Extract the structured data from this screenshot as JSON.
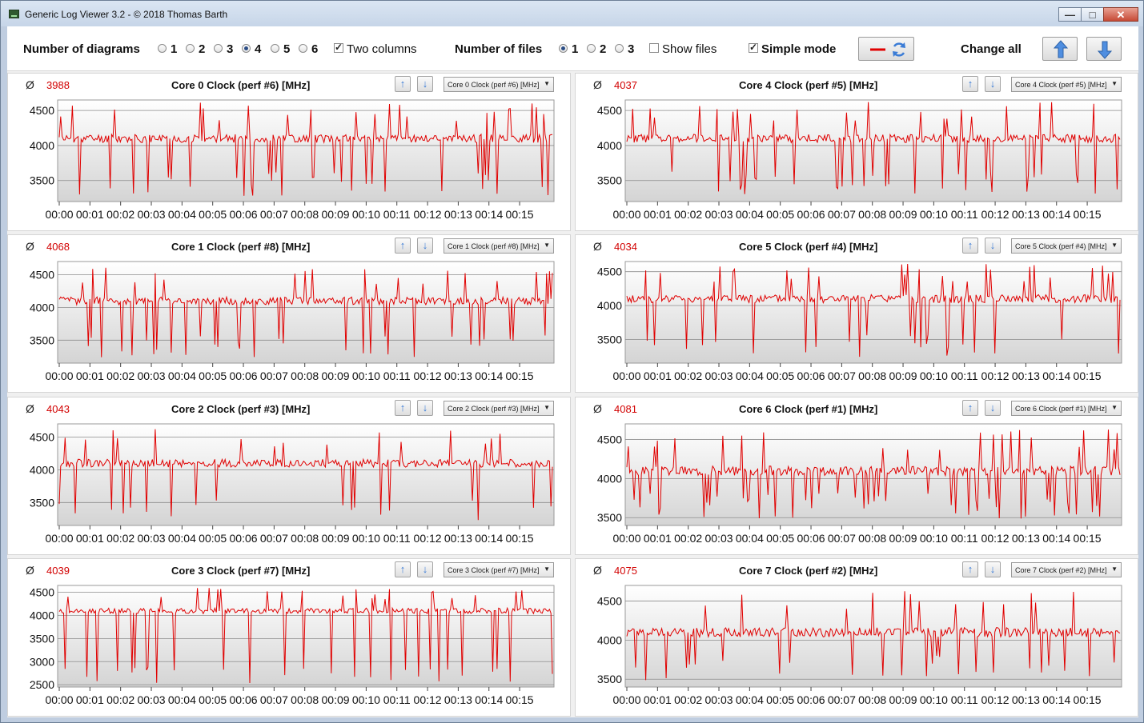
{
  "window": {
    "title": "Generic Log Viewer 3.2 - © 2018 Thomas Barth",
    "minimize_glyph": "—",
    "maximize_glyph": "□",
    "close_glyph": "✕"
  },
  "toolbar": {
    "num_diagrams_label": "Number of diagrams",
    "diagram_options": [
      "1",
      "2",
      "3",
      "4",
      "5",
      "6"
    ],
    "diagram_selected": "4",
    "two_columns_label": "Two columns",
    "two_columns_checked": true,
    "num_files_label": "Number of files",
    "file_options": [
      "1",
      "2",
      "3"
    ],
    "file_selected": "1",
    "show_files_label": "Show files",
    "show_files_checked": false,
    "simple_mode_label": "Simple mode",
    "simple_mode_checked": true,
    "change_all_label": "Change all"
  },
  "colors": {
    "series": "#e00000",
    "average": "#d20000",
    "accent_arrow": "#3b7cd6"
  },
  "x_ticks": [
    "00:00",
    "00:01",
    "00:02",
    "00:03",
    "00:04",
    "00:05",
    "00:06",
    "00:07",
    "00:08",
    "00:09",
    "00:10",
    "00:11",
    "00:12",
    "00:13",
    "00:14",
    "00:15"
  ],
  "panels": [
    {
      "id": "p0",
      "avg_symbol": "Ø",
      "average": "3988",
      "title": "Core 0 Clock (perf #6) [MHz]",
      "dropdown": "Core 0 Clock (perf #6) [MHz]",
      "yticks": [
        4500,
        4000,
        3500
      ],
      "ymin": 3200,
      "ymax": 4650,
      "seed": 11
    },
    {
      "id": "p4",
      "avg_symbol": "Ø",
      "average": "4037",
      "title": "Core 4 Clock (perf #5) [MHz]",
      "dropdown": "Core 4 Clock (perf #5) [MHz]",
      "yticks": [
        4500,
        4000,
        3500
      ],
      "ymin": 3200,
      "ymax": 4650,
      "seed": 23
    },
    {
      "id": "p1",
      "avg_symbol": "Ø",
      "average": "4068",
      "title": "Core 1 Clock (perf #8) [MHz]",
      "dropdown": "Core 1 Clock (perf #8) [MHz]",
      "yticks": [
        4500,
        4000,
        3500
      ],
      "ymin": 3150,
      "ymax": 4700,
      "seed": 37
    },
    {
      "id": "p5",
      "avg_symbol": "Ø",
      "average": "4034",
      "title": "Core 5 Clock (perf #4) [MHz]",
      "dropdown": "Core 5 Clock (perf #4) [MHz]",
      "yticks": [
        4500,
        4000,
        3500
      ],
      "ymin": 3150,
      "ymax": 4650,
      "seed": 41
    },
    {
      "id": "p2",
      "avg_symbol": "Ø",
      "average": "4043",
      "title": "Core 2 Clock (perf #3) [MHz]",
      "dropdown": "Core 2 Clock (perf #3) [MHz]",
      "yticks": [
        4500,
        4000,
        3500
      ],
      "ymin": 3150,
      "ymax": 4700,
      "seed": 53
    },
    {
      "id": "p6",
      "avg_symbol": "Ø",
      "average": "4081",
      "title": "Core 6 Clock (perf #1) [MHz]",
      "dropdown": "Core 6 Clock (perf #1) [MHz]",
      "yticks": [
        4500,
        4000,
        3500
      ],
      "ymin": 3400,
      "ymax": 4700,
      "seed": 67
    },
    {
      "id": "p3",
      "avg_symbol": "Ø",
      "average": "4039",
      "title": "Core 3 Clock (perf #7) [MHz]",
      "dropdown": "Core 3 Clock (perf #7) [MHz]",
      "yticks": [
        4500,
        4000,
        3500,
        3000,
        2500
      ],
      "ymin": 2450,
      "ymax": 4650,
      "seed": 79
    },
    {
      "id": "p7",
      "avg_symbol": "Ø",
      "average": "4075",
      "title": "Core 7 Clock (perf #2) [MHz]",
      "dropdown": "Core 7 Clock (perf #2) [MHz]",
      "yticks": [
        4500,
        4000,
        3500
      ],
      "ymin": 3400,
      "ymax": 4700,
      "seed": 97
    }
  ]
}
